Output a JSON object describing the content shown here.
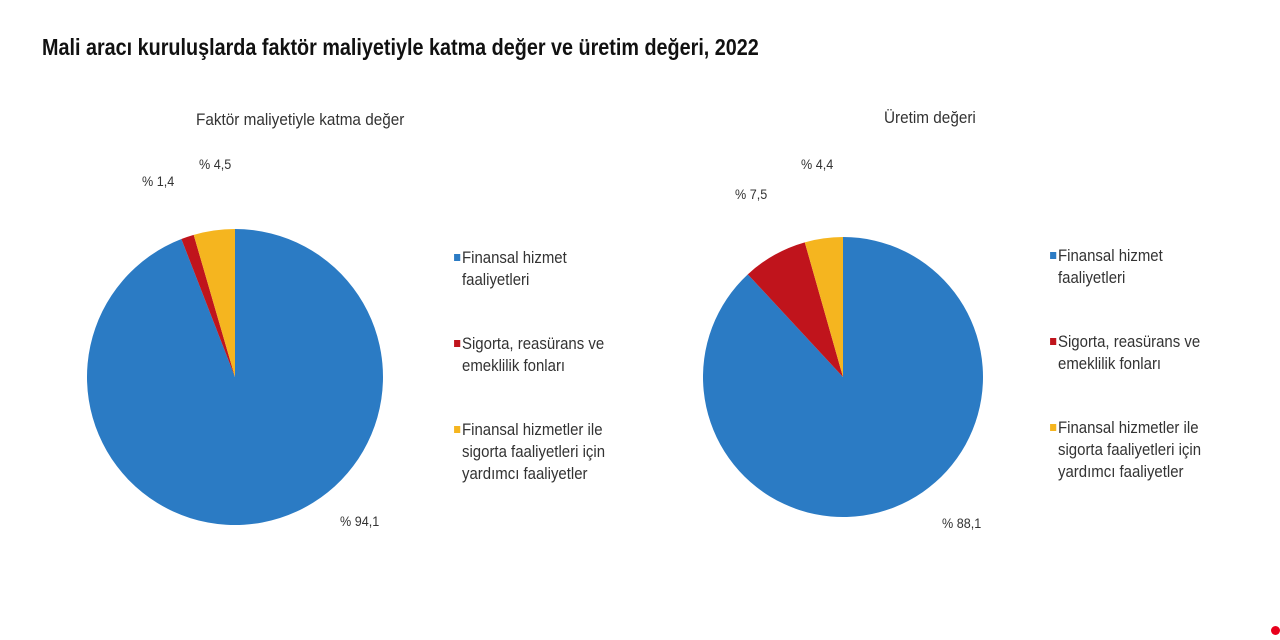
{
  "title": "Mali aracı kuruluşlarda faktör maliyetiyle katma değer ve üretim değeri, 2022",
  "colors": {
    "blue": "#2b7bc4",
    "red": "#c0141c",
    "yellow": "#f5b51f"
  },
  "left": {
    "subtitle": "Faktör maliyetiyle katma değer",
    "labels": {
      "blue": "% 94,1",
      "red": "% 1,4",
      "yellow": "% 4,5"
    }
  },
  "right": {
    "subtitle": "Üretim değeri",
    "labels": {
      "blue": "% 88,1",
      "red": "% 7,5",
      "yellow": "% 4,4"
    }
  },
  "legend": [
    {
      "label": "Finansal hizmet faaliyetleri",
      "line1": "Finansal hizmet",
      "line2": "faaliyetleri",
      "color": "#2b7bc4"
    },
    {
      "label": "Sigorta, reasürans ve emeklilik fonları",
      "line1": "Sigorta, reasürans ve",
      "line2": "emeklilik fonları",
      "color": "#c0141c"
    },
    {
      "label": "Finansal hizmetler ile sigorta faaliyetleri için yardımcı faaliyetler",
      "line1": "Finansal hizmetler ile",
      "line2": "sigorta faaliyetleri için",
      "line3": "yardımcı faaliyetler",
      "color": "#f5b51f"
    }
  ],
  "chart_data": [
    {
      "type": "pie",
      "title": "Faktör maliyetiyle katma değer",
      "categories": [
        "Finansal hizmet faaliyetleri",
        "Sigorta, reasürans ve emeklilik fonları",
        "Finansal hizmetler ile sigorta faaliyetleri için yardımcı faaliyetler"
      ],
      "values": [
        94.1,
        1.4,
        4.5
      ],
      "unit": "%",
      "legend_position": "right"
    },
    {
      "type": "pie",
      "title": "Üretim değeri",
      "categories": [
        "Finansal hizmet faaliyetleri",
        "Sigorta, reasürans ve emeklilik fonları",
        "Finansal hizmetler ile sigorta faaliyetleri için yardımcı faaliyetler"
      ],
      "values": [
        88.1,
        7.5,
        4.4
      ],
      "unit": "%",
      "legend_position": "right"
    }
  ]
}
